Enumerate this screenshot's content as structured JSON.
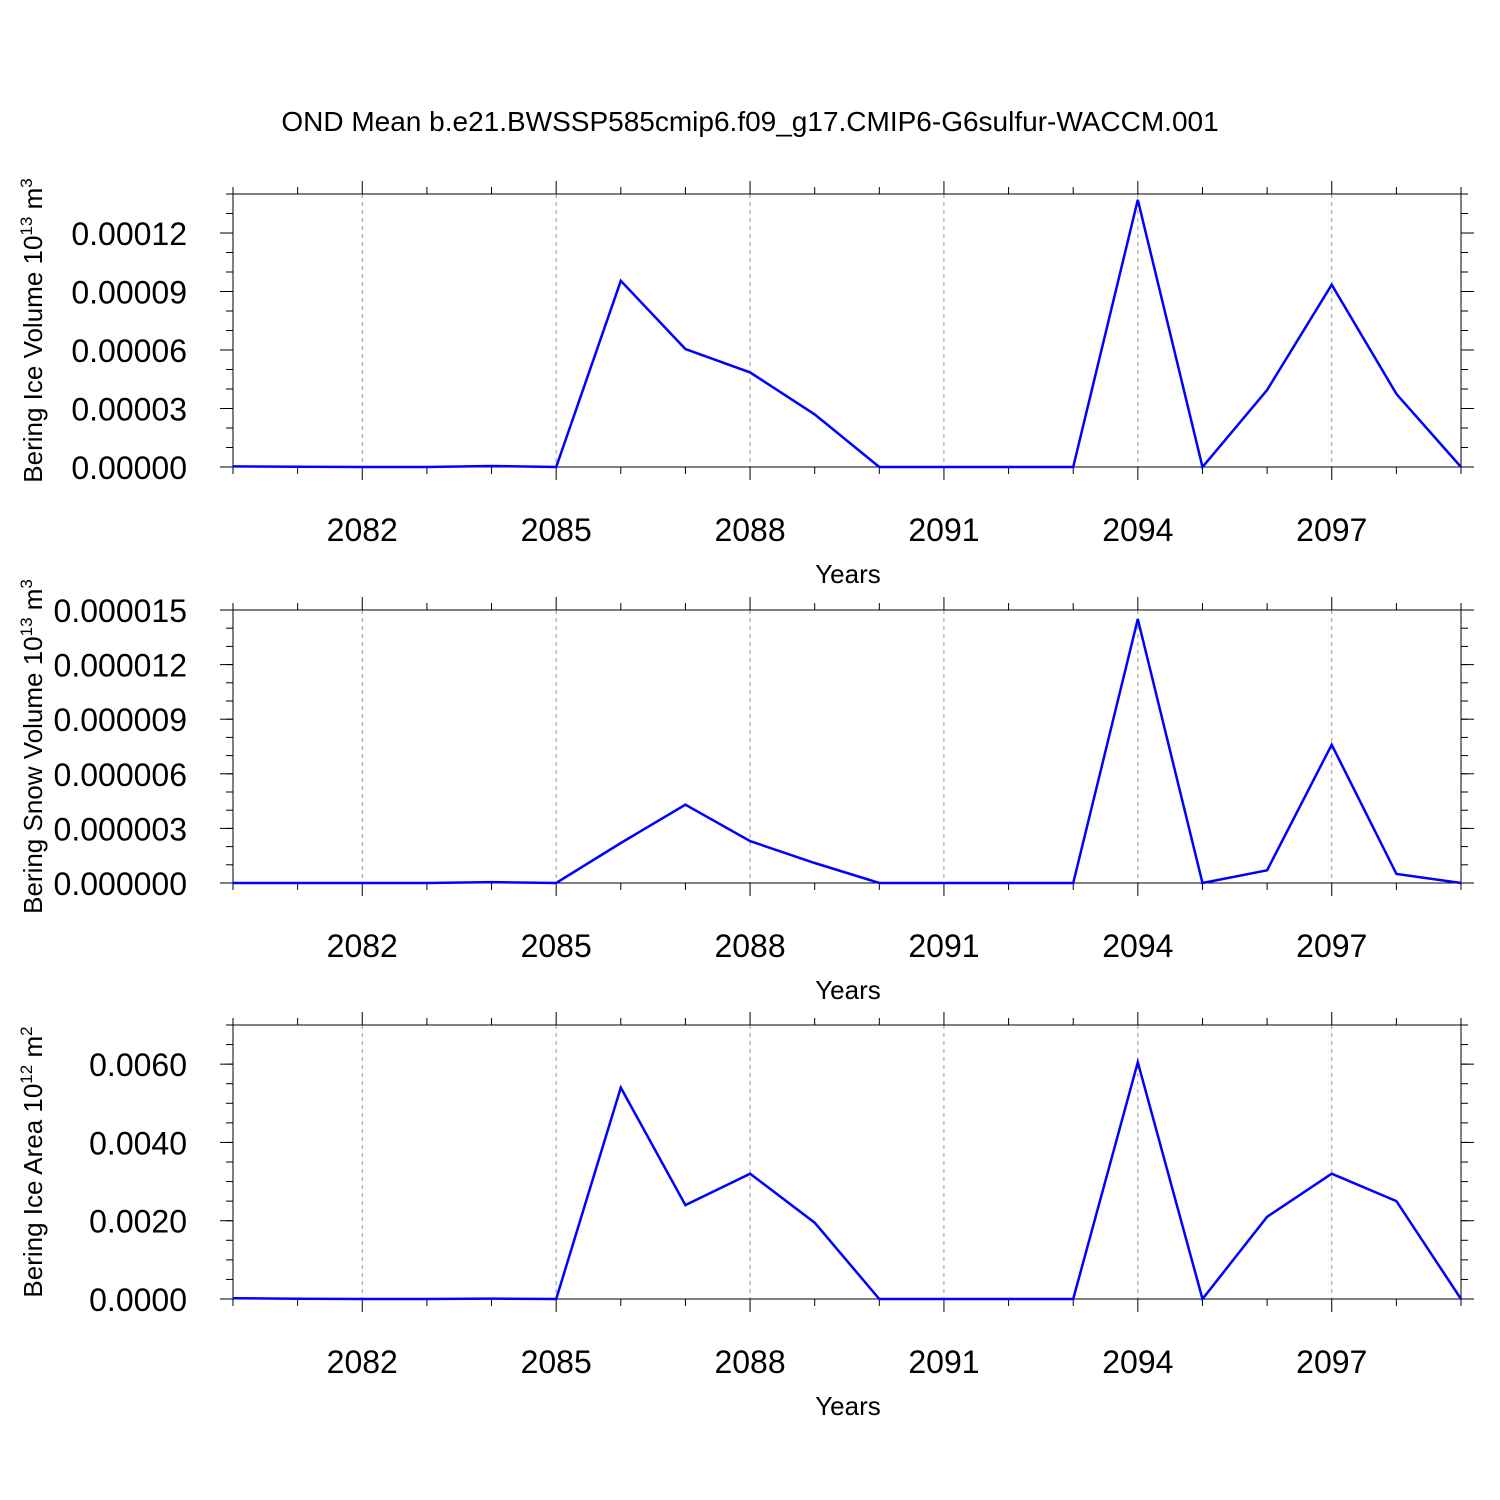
{
  "title": "OND Mean b.e21.BWSSP585cmip6.f09_g17.CMIP6-G6sulfur-WACCM.001",
  "colors": {
    "line": "#0000ff",
    "axis": "#000000",
    "grid": "#999999",
    "background": "#ffffff"
  },
  "chart_data": [
    {
      "type": "line",
      "xlabel": "Years",
      "ylabel": "Bering Ice Volume 10",
      "ylabel_exponent": "13",
      "ylabel_unit": " m",
      "ylabel_unit_exponent": "3",
      "xlim": [
        2080,
        2099
      ],
      "ylim": [
        0,
        0.00014
      ],
      "xticks": [
        "2082",
        "2085",
        "2088",
        "2091",
        "2094",
        "2097"
      ],
      "yticks": [
        "0.00000",
        "0.00003",
        "0.00006",
        "0.00009",
        "0.00012"
      ],
      "grid": "x-dashed",
      "series": [
        {
          "x": [
            2080,
            2081,
            2082,
            2083,
            2084,
            2085,
            2086,
            2087,
            2088,
            2089,
            2090,
            2091,
            2092,
            2093,
            2094,
            2095,
            2096,
            2097,
            2098,
            2099
          ],
          "values": [
            3e-07,
            1e-07,
            0.0,
            0.0,
            5e-07,
            0.0,
            9.55e-05,
            6.05e-05,
            4.85e-05,
            2.7e-05,
            0.0,
            0.0,
            0.0,
            0.0,
            0.000137,
            0.0,
            3.95e-05,
            9.35e-05,
            3.75e-05,
            0.0
          ]
        }
      ]
    },
    {
      "type": "line",
      "xlabel": "Years",
      "ylabel": "Bering Snow Volume 10",
      "ylabel_exponent": "13",
      "ylabel_unit": " m",
      "ylabel_unit_exponent": "3",
      "xlim": [
        2080,
        2099
      ],
      "ylim": [
        0,
        1.5e-05
      ],
      "xticks": [
        "2082",
        "2085",
        "2088",
        "2091",
        "2094",
        "2097"
      ],
      "yticks": [
        "0.000000",
        "0.000003",
        "0.000006",
        "0.000009",
        "0.000012",
        "0.000015"
      ],
      "grid": "x-dashed",
      "series": [
        {
          "x": [
            2080,
            2081,
            2082,
            2083,
            2084,
            2085,
            2086,
            2087,
            2088,
            2089,
            2090,
            2091,
            2092,
            2093,
            2094,
            2095,
            2096,
            2097,
            2098,
            2099
          ],
          "values": [
            0.0,
            0.0,
            0.0,
            0.0,
            5e-08,
            0.0,
            2.2e-06,
            4.3e-06,
            2.3e-06,
            1.1e-06,
            0.0,
            0.0,
            0.0,
            0.0,
            1.45e-05,
            0.0,
            7e-07,
            7.6e-06,
            5e-07,
            0.0
          ]
        }
      ]
    },
    {
      "type": "line",
      "xlabel": "Years",
      "ylabel": "Bering Ice Area 10",
      "ylabel_exponent": "12",
      "ylabel_unit": " m",
      "ylabel_unit_exponent": "2",
      "xlim": [
        2080,
        2099
      ],
      "ylim": [
        0,
        0.007
      ],
      "xticks": [
        "2082",
        "2085",
        "2088",
        "2091",
        "2094",
        "2097"
      ],
      "yticks": [
        "0.0000",
        "0.0020",
        "0.0040",
        "0.0060"
      ],
      "grid": "x-dashed",
      "series": [
        {
          "x": [
            2080,
            2081,
            2082,
            2083,
            2084,
            2085,
            2086,
            2087,
            2088,
            2089,
            2090,
            2091,
            2092,
            2093,
            2094,
            2095,
            2096,
            2097,
            2098,
            2099
          ],
          "values": [
            2e-05,
            5e-06,
            0.0,
            0.0,
            1e-05,
            0.0,
            0.0054,
            0.0024,
            0.0032,
            0.00195,
            0.0,
            0.0,
            0.0,
            0.0,
            0.00605,
            0.0,
            0.0021,
            0.0032,
            0.0025,
            0.0
          ]
        }
      ]
    }
  ]
}
